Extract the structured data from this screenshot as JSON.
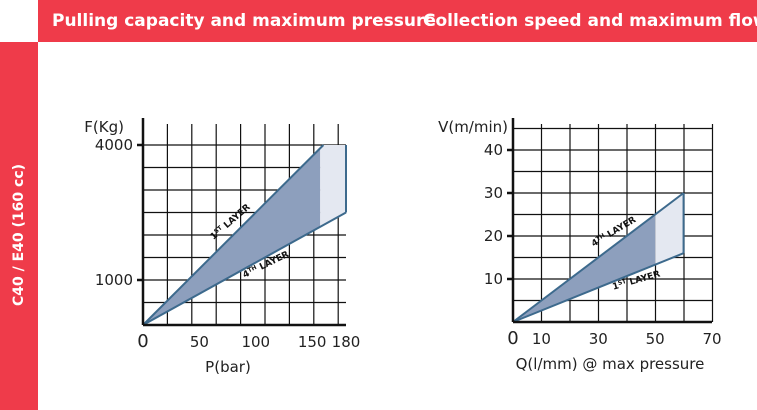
{
  "header": {
    "left_title": "Pulling capacity and maximum pressure",
    "right_title": "Collection speed and maximum flow"
  },
  "side_label": "C40 / E40 (160 cc)",
  "colors": {
    "accent": "#ef3b4a",
    "band": "#8d9fbd",
    "band_light": "#e4e8f1",
    "band_edge": "#3d6a8d"
  },
  "chart_data": [
    {
      "type": "area",
      "title": "Pulling capacity and maximum pressure",
      "xlabel": "P(bar)",
      "ylabel": "F(Kg)",
      "xlim": [
        0,
        180
      ],
      "ylim": [
        0,
        4000
      ],
      "x_ticks": [
        "0",
        "50",
        "100",
        "150",
        "180"
      ],
      "y_ticks": [
        "1000",
        "4000"
      ],
      "grid": true,
      "series": [
        {
          "name": "1ST LAYER",
          "x": [
            0,
            160
          ],
          "y": [
            0,
            4000
          ]
        },
        {
          "name": "4TH LAYER",
          "x": [
            0,
            180
          ],
          "y": [
            0,
            2500
          ]
        }
      ],
      "shaded_limit_x": 157,
      "labels": {
        "upper": "1ST LAYER",
        "lower": "4TH LAYER"
      }
    },
    {
      "type": "area",
      "title": "Collection speed and maximum flow",
      "xlabel": "Q(l/mm) @ max pressure",
      "ylabel": "V(m/min)",
      "xlim": [
        0,
        70
      ],
      "ylim": [
        0,
        40
      ],
      "x_ticks": [
        "0",
        "10",
        "30",
        "50",
        "70"
      ],
      "y_ticks": [
        "10",
        "20",
        "30",
        "40"
      ],
      "grid": true,
      "series": [
        {
          "name": "4TH LAYER",
          "x": [
            0,
            60
          ],
          "y": [
            0,
            30
          ]
        },
        {
          "name": "1ST LAYER",
          "x": [
            0,
            60
          ],
          "y": [
            0,
            16
          ]
        }
      ],
      "shaded_limit_x": 50,
      "labels": {
        "upper": "4TH LAYER",
        "lower": "1ST LAYER"
      }
    }
  ]
}
